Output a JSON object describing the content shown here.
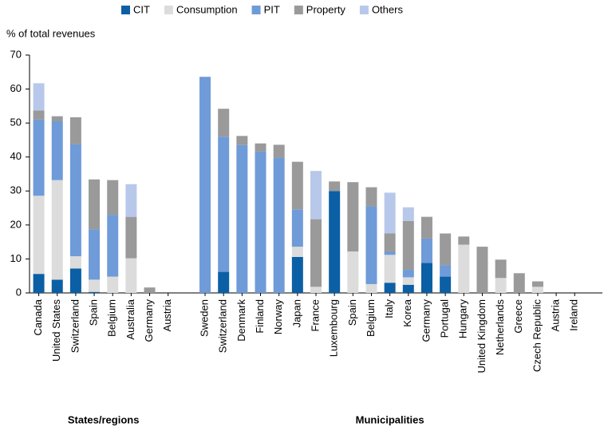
{
  "chart_data": {
    "type": "stacked_bar",
    "ylabel": "% of total revenues",
    "group_labels": [
      "States/regions",
      "Municipalities"
    ],
    "categories": [
      "Canada",
      "United States",
      "Switzerland",
      "Spain",
      "Belgium",
      "Australia",
      "Germany",
      "Austria",
      null,
      "Sweden",
      "Switzerland",
      "Denmark",
      "Finland",
      "Norway",
      "Japan",
      "France",
      "Luxembourg",
      "Spain",
      "Belgium",
      "Italy",
      "Korea",
      "Germany",
      "Portugal",
      "Hungary",
      "United Kingdom",
      "Netherlands",
      "Greece",
      "Czech Republic",
      "Austria",
      "Ireland"
    ],
    "series": [
      {
        "name": "CIT",
        "color": "#0b5fa5",
        "values": [
          5.6,
          3.9,
          7.2,
          0.3,
          0,
          0,
          0,
          0,
          null,
          0,
          6.2,
          0,
          0,
          0,
          10.6,
          0,
          30,
          0,
          0,
          3,
          2.4,
          8.8,
          4.8,
          0,
          0,
          0,
          0,
          0,
          0,
          0
        ]
      },
      {
        "name": "Consumption",
        "color": "#dcdcdc",
        "values": [
          23,
          29.3,
          3.6,
          3.6,
          4.8,
          10.2,
          0,
          0,
          null,
          0,
          0,
          0,
          0,
          0,
          3,
          1.8,
          0,
          12.2,
          2.6,
          8.2,
          2.2,
          0,
          0,
          14.2,
          0,
          4.4,
          0,
          1.8,
          0,
          0
        ]
      },
      {
        "name": "PIT",
        "color": "#6f9bd8",
        "values": [
          22.4,
          17.3,
          32.9,
          14.8,
          18.2,
          0,
          0,
          0,
          null,
          63.6,
          39.8,
          43.5,
          41.6,
          39.8,
          11,
          0,
          0,
          0,
          22.9,
          0.9,
          2.2,
          7.2,
          3.4,
          0,
          0,
          0,
          0,
          0,
          0,
          0
        ]
      },
      {
        "name": "Property",
        "color": "#9a9a9a",
        "values": [
          2.7,
          1.5,
          8,
          14.7,
          10.2,
          12.2,
          1.6,
          0,
          null,
          0,
          8.2,
          2.7,
          2.4,
          3.8,
          14,
          19.9,
          2.8,
          20.4,
          5.6,
          5.4,
          14.4,
          6.4,
          9.3,
          2.4,
          13.6,
          5.4,
          5.8,
          1.6,
          0,
          0
        ]
      },
      {
        "name": "Others",
        "color": "#b8c8ea",
        "values": [
          8,
          0,
          0,
          0,
          0,
          9.6,
          0,
          0,
          null,
          0,
          0,
          0,
          0,
          0,
          0,
          14.2,
          0,
          0,
          0,
          12,
          4,
          0,
          0,
          0,
          0,
          0,
          0,
          0,
          0,
          0
        ]
      }
    ],
    "ylim": [
      0,
      70
    ],
    "yticks": [
      0,
      10,
      20,
      30,
      40,
      50,
      60,
      70
    ],
    "grid": false
  }
}
